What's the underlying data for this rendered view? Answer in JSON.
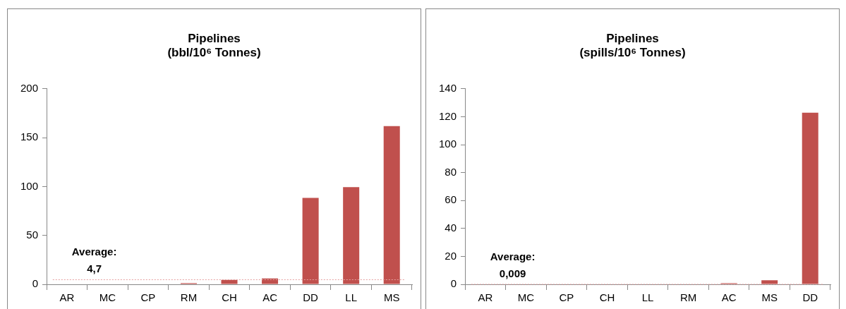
{
  "chart_data": [
    {
      "type": "bar",
      "title": "Pipelines\n(bbl/10⁶ Tonnes)",
      "categories": [
        "AR",
        "MC",
        "CP",
        "RM",
        "CH",
        "AC",
        "DD",
        "LL",
        "MS"
      ],
      "values": [
        0,
        0,
        0,
        1.2,
        4.5,
        6,
        88.4,
        99.4,
        161.8
      ],
      "color": "#c0504d",
      "ylim": [
        0,
        200
      ],
      "yticks": [
        0,
        50,
        100,
        150,
        200
      ],
      "grid": false,
      "legend": false,
      "ref_lines": [
        {
          "axis": "y",
          "value": 4.7,
          "label": "Average:\n4,7",
          "color": "#e6a0a0",
          "line_style": "dotted"
        }
      ]
    },
    {
      "type": "bar",
      "title": "Pipelines\n(spills/10⁶ Tonnes)",
      "categories": [
        "AR",
        "MC",
        "CP",
        "CH",
        "LL",
        "RM",
        "AC",
        "MS",
        "DD"
      ],
      "values": [
        0,
        0,
        0,
        0,
        0,
        0,
        0.8,
        2.9,
        122.8
      ],
      "color": "#c0504d",
      "ylim": [
        0,
        140
      ],
      "yticks": [
        0,
        20,
        40,
        60,
        80,
        100,
        120,
        140
      ],
      "grid": false,
      "legend": false,
      "ref_lines": [
        {
          "axis": "y",
          "value": 0.009,
          "label": "Average:\n0,009",
          "color": "#e6a0a0",
          "line_style": "dotted"
        }
      ]
    }
  ]
}
